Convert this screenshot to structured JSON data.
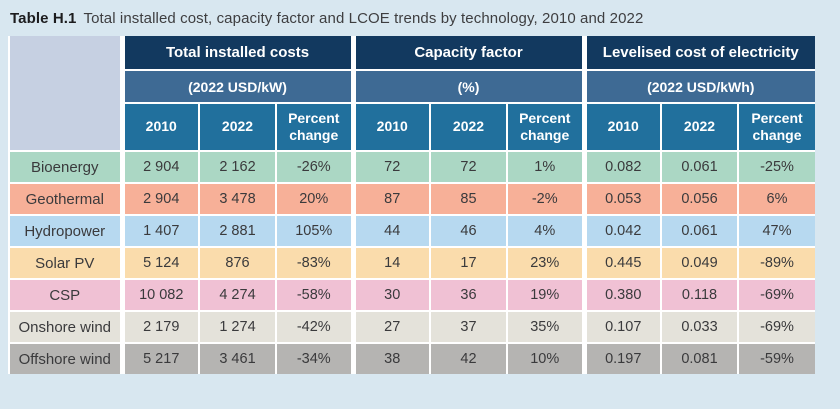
{
  "title": {
    "label": "Table H.1",
    "text": "Total installed cost, capacity factor and LCOE trends by technology, 2010 and 2022"
  },
  "table": {
    "groups": [
      {
        "name": "Total installed costs",
        "unit": "(2022 USD/kW)"
      },
      {
        "name": "Capacity factor",
        "unit": "(%)"
      },
      {
        "name": "Levelised cost of electricity",
        "unit": "(2022 USD/kWh)"
      }
    ],
    "year_columns": [
      "2010",
      "2022",
      "Percent change"
    ],
    "rows": [
      {
        "tech": "Bioenergy",
        "color": "#abd7c4",
        "values": [
          "2 904",
          "2 162",
          "-26%",
          "72",
          "72",
          "1%",
          "0.082",
          "0.061",
          "-25%"
        ]
      },
      {
        "tech": "Geothermal",
        "color": "#f7b098",
        "values": [
          "2 904",
          "3 478",
          "20%",
          "87",
          "85",
          "-2%",
          "0.053",
          "0.056",
          "6%"
        ]
      },
      {
        "tech": "Hydropower",
        "color": "#b7d9f0",
        "values": [
          "1 407",
          "2 881",
          "105%",
          "44",
          "46",
          "4%",
          "0.042",
          "0.061",
          "47%"
        ]
      },
      {
        "tech": "Solar PV",
        "color": "#fadcac",
        "values": [
          "5 124",
          "876",
          "-83%",
          "14",
          "17",
          "23%",
          "0.445",
          "0.049",
          "-89%"
        ]
      },
      {
        "tech": "CSP",
        "color": "#f0c1d4",
        "values": [
          "10 082",
          "4 274",
          "-58%",
          "30",
          "36",
          "19%",
          "0.380",
          "0.118",
          "-69%"
        ]
      },
      {
        "tech": "Onshore wind",
        "color": "#e4e2da",
        "values": [
          "2 179",
          "1 274",
          "-42%",
          "27",
          "37",
          "35%",
          "0.107",
          "0.033",
          "-69%"
        ]
      },
      {
        "tech": "Offshore wind",
        "color": "#b5b4b2",
        "values": [
          "5 217",
          "3 461",
          "-34%",
          "38",
          "42",
          "10%",
          "0.197",
          "0.081",
          "-59%"
        ]
      }
    ],
    "palette": {
      "page_bg": "#d8e7f0",
      "corner_cell": "#c6d0e2",
      "group_header_bg": "#12395f",
      "unit_header_bg": "#3e6a94",
      "year_header_bg": "#21709d",
      "header_text": "#ffffff",
      "cell_text": "#3a3a3c",
      "cell_gap": "#ffffff"
    }
  },
  "chart_data": {
    "type": "table",
    "title": "Total installed cost, capacity factor and LCOE trends by technology, 2010 and 2022",
    "metrics": [
      {
        "name": "Total installed costs",
        "unit": "2022 USD/kW"
      },
      {
        "name": "Capacity factor",
        "unit": "%"
      },
      {
        "name": "Levelised cost of electricity",
        "unit": "2022 USD/kWh"
      }
    ],
    "technologies": [
      "Bioenergy",
      "Geothermal",
      "Hydropower",
      "Solar PV",
      "CSP",
      "Onshore wind",
      "Offshore wind"
    ],
    "installed_cost_2010": [
      2904,
      2904,
      1407,
      5124,
      10082,
      2179,
      5217
    ],
    "installed_cost_2022": [
      2162,
      3478,
      2881,
      876,
      4274,
      1274,
      3461
    ],
    "installed_cost_percent_change": [
      "-26%",
      "20%",
      "105%",
      "-83%",
      "-58%",
      "-42%",
      "-34%"
    ],
    "capacity_factor_2010": [
      72,
      87,
      44,
      14,
      30,
      27,
      38
    ],
    "capacity_factor_2022": [
      72,
      85,
      46,
      17,
      36,
      37,
      42
    ],
    "capacity_factor_percent_change": [
      "1%",
      "-2%",
      "4%",
      "23%",
      "19%",
      "35%",
      "10%"
    ],
    "lcoe_2010": [
      0.082,
      0.053,
      0.042,
      0.445,
      0.38,
      0.107,
      0.197
    ],
    "lcoe_2022": [
      0.061,
      0.056,
      0.061,
      0.049,
      0.118,
      0.033,
      0.081
    ],
    "lcoe_percent_change": [
      "-25%",
      "6%",
      "47%",
      "-89%",
      "-69%",
      "-69%",
      "-59%"
    ]
  }
}
